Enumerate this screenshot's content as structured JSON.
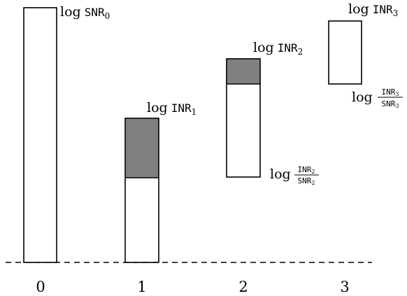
{
  "ticks": [
    "0",
    "1",
    "2",
    "3"
  ],
  "colors": {
    "shade": "#808080",
    "stroke": "#000000",
    "background": "#ffffff"
  },
  "labels": {
    "log": "log",
    "snr0": {
      "base": "SNR",
      "sub": "0"
    },
    "inr1": {
      "base": "INR",
      "sub": "1"
    },
    "inr2": {
      "base": "INR",
      "sub": "2"
    },
    "inr3": {
      "base": "INR",
      "sub": "3"
    },
    "ratio2": {
      "num": {
        "base": "INR",
        "sub": "2"
      },
      "den": {
        "base": "SNR",
        "sub": "2"
      }
    },
    "ratio3": {
      "num": {
        "base": "INR",
        "sub": "3"
      },
      "den": {
        "base": "SNR",
        "sub": "3"
      }
    }
  }
}
